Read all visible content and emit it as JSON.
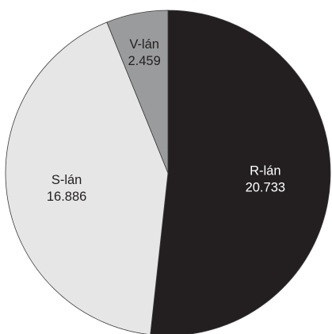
{
  "chart_data": {
    "type": "pie",
    "title": "",
    "slices": [
      {
        "label": "R-lán",
        "value_text": "20.733",
        "value": 20733,
        "color": "#231f20",
        "text_color": "#ffffff"
      },
      {
        "label": "S-lán",
        "value_text": "16.886",
        "value": 16886,
        "color": "#e6e6e7",
        "text_color": "#231f20"
      },
      {
        "label": "V-lán",
        "value_text": "2.459",
        "value": 2459,
        "color": "#9a9b9d",
        "text_color": "#231f20"
      }
    ],
    "start_angle_deg": 0,
    "direction": "clockwise",
    "legend": "none"
  }
}
